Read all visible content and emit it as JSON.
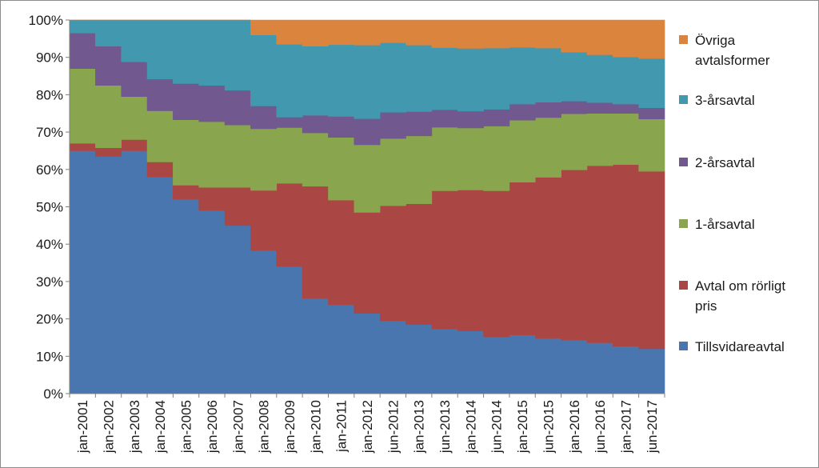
{
  "chart_data": {
    "type": "area",
    "stacked": true,
    "normalized_percent": true,
    "title": "",
    "xlabel": "",
    "ylabel": "",
    "ylim": [
      0,
      100
    ],
    "y_ticks": [
      "0%",
      "10%",
      "20%",
      "30%",
      "40%",
      "50%",
      "60%",
      "70%",
      "80%",
      "90%",
      "100%"
    ],
    "grid": false,
    "legend_position": "right",
    "categories": [
      "jan-2001",
      "jan-2002",
      "jan-2003",
      "jan-2004",
      "jan-2005",
      "jan-2006",
      "jan-2007",
      "jan-2008",
      "jan-2009",
      "jan-2010",
      "jan-2011",
      "jan-2012",
      "jun-2012",
      "jan-2013",
      "jun-2013",
      "jan-2014",
      "jun-2014",
      "jan-2015",
      "jun-2015",
      "jan-2016",
      "jun-2016",
      "jan-2017",
      "jun-2017"
    ],
    "series": [
      {
        "name": "Tillsvidareavtal",
        "color": "#4a76b0",
        "values": [
          65,
          63.5,
          65,
          58,
          52,
          49,
          45,
          38.3,
          34,
          25.5,
          23.8,
          21.5,
          19.5,
          18.5,
          17.3,
          16.8,
          15.2,
          15.7,
          14.8,
          14.3,
          13.6,
          12.7,
          12
        ]
      },
      {
        "name": "Avtal om rörligt pris",
        "color": "#aa4643",
        "values": [
          2,
          2.3,
          3,
          4,
          3.8,
          6.2,
          10.2,
          16.1,
          22.3,
          30,
          28,
          27,
          30.8,
          32.3,
          37,
          37.7,
          39.1,
          40.9,
          43.1,
          45.6,
          47.4,
          48.6,
          47.5
        ]
      },
      {
        "name": "1-årsavtal",
        "color": "#89a54e",
        "values": [
          20,
          16.7,
          11.5,
          13.7,
          17.5,
          17.6,
          16.7,
          16.5,
          14.9,
          14.3,
          16.8,
          18.1,
          18,
          18.2,
          17,
          16.6,
          17.3,
          16.6,
          16,
          15,
          14,
          13.7,
          14
        ]
      },
      {
        "name": "2-årsavtal",
        "color": "#71588f",
        "values": [
          9.5,
          10.5,
          9.3,
          8.5,
          9.7,
          9.7,
          9.3,
          6.1,
          2.8,
          4.7,
          5.6,
          7,
          7,
          6.5,
          4.7,
          4.5,
          4.5,
          4.3,
          4.1,
          3.4,
          2.9,
          2.5,
          3
        ]
      },
      {
        "name": "3-årsavtal",
        "color": "#4198af",
        "values": [
          3.5,
          7,
          11.2,
          15.8,
          17,
          17.5,
          18.8,
          19,
          19.5,
          18.5,
          19.2,
          19.7,
          18.6,
          17.8,
          16.6,
          16.8,
          16.4,
          15.2,
          14.5,
          13.1,
          12.8,
          12.6,
          13.2
        ]
      },
      {
        "name": "Övriga avtalsformer",
        "color": "#db843d",
        "values": [
          0,
          0,
          0,
          0,
          0,
          0,
          0,
          4,
          6.5,
          7,
          6.6,
          6.7,
          6.1,
          6.7,
          7.4,
          7.6,
          7.5,
          7.3,
          7.5,
          8.6,
          9.3,
          9.9,
          10.3
        ]
      }
    ],
    "legend": [
      {
        "lines": [
          "Övriga",
          "avtalsformer"
        ],
        "series": "Övriga avtalsformer"
      },
      {
        "lines": [
          "3-årsavtal"
        ],
        "series": "3-årsavtal"
      },
      {
        "lines": [
          "2-årsavtal"
        ],
        "series": "2-årsavtal"
      },
      {
        "lines": [
          "1-årsavtal"
        ],
        "series": "1-årsavtal"
      },
      {
        "lines": [
          "Avtal om rörligt",
          "pris"
        ],
        "series": "Avtal om rörligt pris"
      },
      {
        "lines": [
          "Tillsvidareavtal"
        ],
        "series": "Tillsvidareavtal"
      }
    ]
  }
}
